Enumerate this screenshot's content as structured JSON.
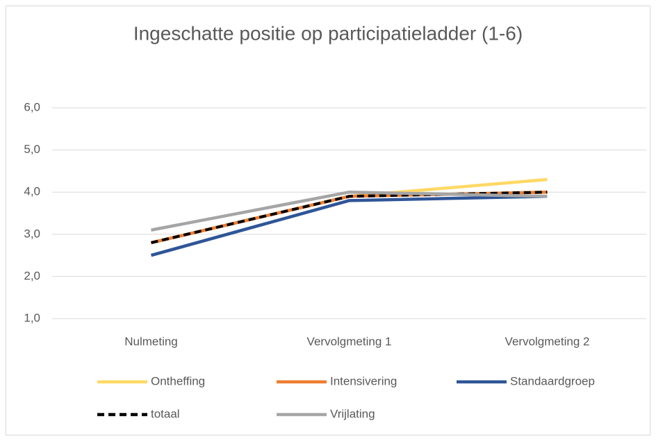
{
  "chart_data": {
    "type": "line",
    "title": "Ingeschatte positie op participatieladder (1-6)",
    "categories": [
      "Nulmeting",
      "Vervolgmeting 1",
      "Vervolgmeting 2"
    ],
    "series": [
      {
        "name": "Ontheffing",
        "color": "#ffd966",
        "values": [
          2.8,
          3.9,
          4.3
        ]
      },
      {
        "name": "Intensivering",
        "color": "#ed7d31",
        "values": [
          2.8,
          3.9,
          4.0
        ]
      },
      {
        "name": "Standaardgroep",
        "color": "#2f5597",
        "values": [
          2.5,
          3.8,
          3.9
        ]
      },
      {
        "name": "totaal",
        "color": "#000000",
        "dashed": true,
        "values": [
          2.8,
          3.9,
          4.0
        ]
      },
      {
        "name": "Vrijlating",
        "color": "#a5a5a5",
        "values": [
          3.1,
          4.0,
          3.9
        ]
      }
    ],
    "ylim": [
      1,
      6
    ],
    "yticks": [
      {
        "value": 1,
        "label": "1,0"
      },
      {
        "value": 2,
        "label": "2,0"
      },
      {
        "value": 3,
        "label": "3,0"
      },
      {
        "value": 4,
        "label": "4,0"
      },
      {
        "value": 5,
        "label": "5,0"
      },
      {
        "value": 6,
        "label": "6,0"
      }
    ],
    "grid": true
  }
}
